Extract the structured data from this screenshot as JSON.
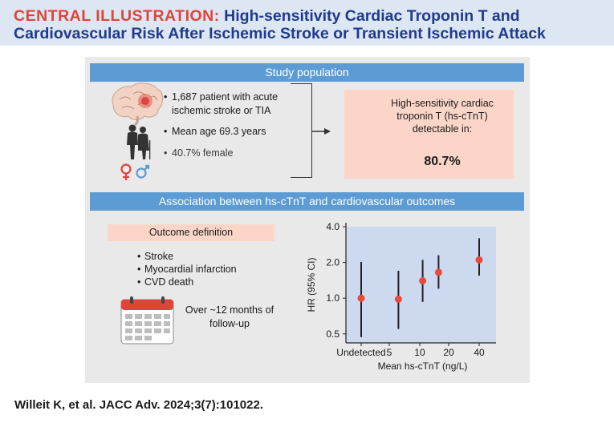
{
  "header": {
    "label": "CENTRAL ILLUSTRATION:",
    "title_line1": " High-sensitivity Cardiac Troponin T and",
    "title_line2": "Cardiovascular Risk After Ischemic Stroke or Transient Ischemic Attack"
  },
  "study_population": {
    "title": "Study population",
    "bullets": [
      "1,687 patient with acute ischemic stroke or TIA",
      "Mean age 69.3 years",
      "40.7% female"
    ],
    "icons": [
      "brain-icon",
      "elderly-couple-icon",
      "gender-symbols-icon",
      "arrow-icon",
      "blood-tube-icon"
    ],
    "result_text": "High-sensitivity cardiac troponin T (hs-cTnT) detectable in:",
    "result_value": "80.7%"
  },
  "association": {
    "title": "Association between hs-cTnT and cardiovascular outcomes",
    "outcome_definition_label": "Outcome definition",
    "outcomes": [
      "Stroke",
      "Myocardial infarction",
      "CVD death"
    ],
    "followup": "Over ~12 months of follow-up",
    "calendar_icon": "calendar-icon"
  },
  "chart_data": {
    "type": "scatter",
    "title": "",
    "xlabel": "Mean hs-cTnT (ng/L)",
    "ylabel": "HR (95% CI)",
    "y_scale": "log",
    "ylim": [
      0.42,
      4.0
    ],
    "y_ticks": [
      0.5,
      1.0,
      2.0,
      4.0
    ],
    "y_tick_labels": [
      "0.5",
      "1.0",
      "2.0",
      "4.0"
    ],
    "x_ticks": [
      0,
      5,
      10,
      20,
      40
    ],
    "x_tick_labels": [
      "Undetected",
      "5",
      "10",
      "20",
      "40"
    ],
    "points": [
      {
        "x": 0,
        "hr": 1.0,
        "lower": 0.47,
        "upper": 2.02
      },
      {
        "x": 6.5,
        "hr": 0.98,
        "lower": 0.55,
        "upper": 1.7
      },
      {
        "x": 11,
        "hr": 1.4,
        "lower": 0.93,
        "upper": 2.1
      },
      {
        "x": 16.5,
        "hr": 1.65,
        "lower": 1.2,
        "upper": 2.3
      },
      {
        "x": 40,
        "hr": 2.1,
        "lower": 1.55,
        "upper": 3.2
      }
    ],
    "colors": {
      "point": "#e84a3c",
      "whisker": "#222222",
      "background": "#ccd9ef"
    }
  },
  "citation": "Willeit K, et al. JACC Adv. 2024;3(7):101022."
}
